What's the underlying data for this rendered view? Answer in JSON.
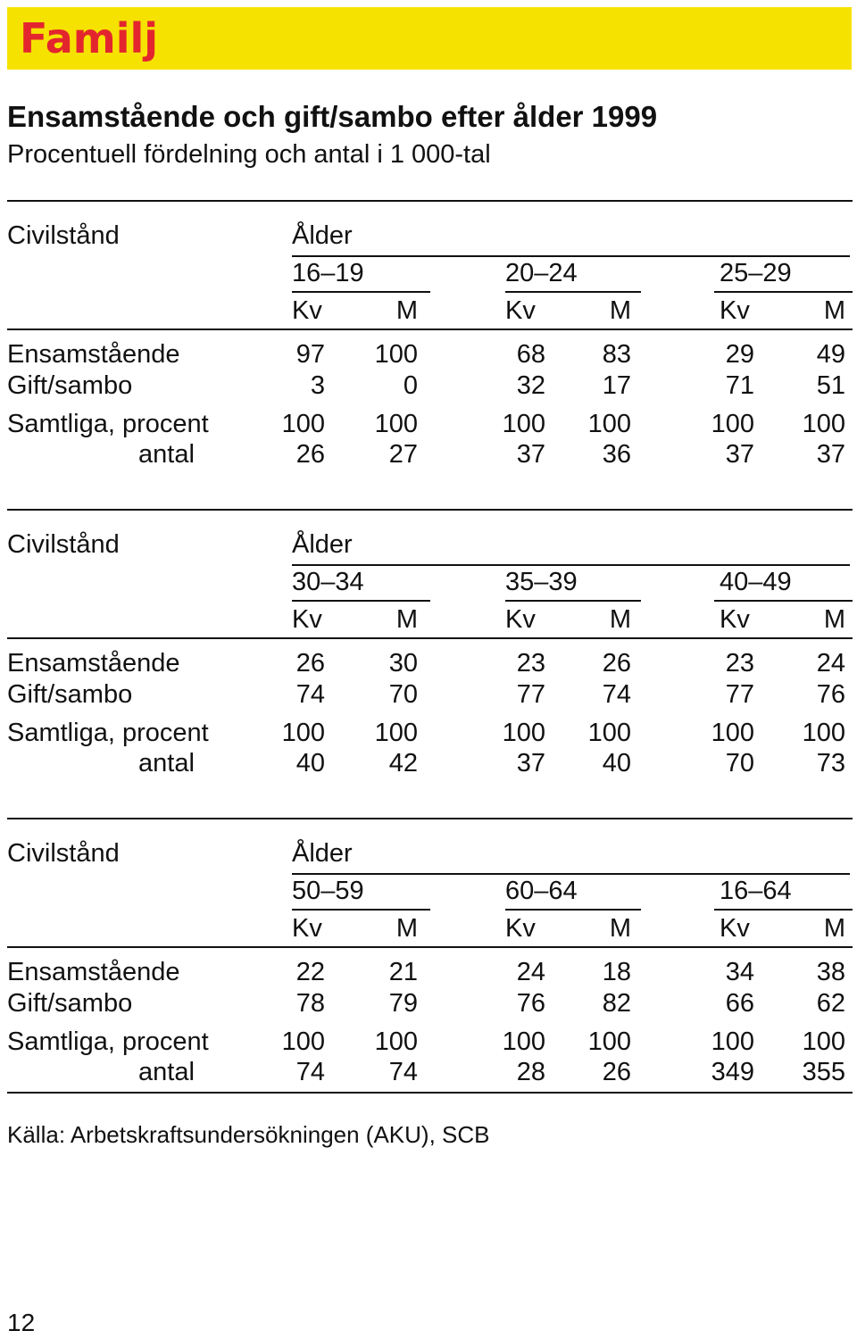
{
  "banner": {
    "title": "Familj",
    "background": "#f6e200",
    "title_color": "#e3262e"
  },
  "title": "Ensamstående och gift/sambo efter ålder 1999",
  "subtitle": "Procentuell fördelning och antal i 1 000-tal",
  "headers": {
    "row_header": "Civilstånd",
    "age": "Ålder",
    "female": "Kv",
    "male": "M"
  },
  "sections": [
    {
      "groups": [
        "16–19",
        "20–24",
        "25–29"
      ],
      "rows": [
        {
          "label": "Ensamstående",
          "values": [
            "97",
            "100",
            "68",
            "83",
            "29",
            "49"
          ]
        },
        {
          "label": "Gift/sambo",
          "values": [
            "3",
            "0",
            "32",
            "17",
            "71",
            "51"
          ]
        },
        {
          "label": "Samtliga, procent",
          "values": [
            "100",
            "100",
            "100",
            "100",
            "100",
            "100"
          ]
        },
        {
          "label": "antal",
          "values": [
            "26",
            "27",
            "37",
            "36",
            "37",
            "37"
          ]
        }
      ]
    },
    {
      "groups": [
        "30–34",
        "35–39",
        "40–49"
      ],
      "rows": [
        {
          "label": "Ensamstående",
          "values": [
            "26",
            "30",
            "23",
            "26",
            "23",
            "24"
          ]
        },
        {
          "label": "Gift/sambo",
          "values": [
            "74",
            "70",
            "77",
            "74",
            "77",
            "76"
          ]
        },
        {
          "label": "Samtliga, procent",
          "values": [
            "100",
            "100",
            "100",
            "100",
            "100",
            "100"
          ]
        },
        {
          "label": "antal",
          "values": [
            "40",
            "42",
            "37",
            "40",
            "70",
            "73"
          ]
        }
      ]
    },
    {
      "groups": [
        "50–59",
        "60–64",
        "16–64"
      ],
      "rows": [
        {
          "label": "Ensamstående",
          "values": [
            "22",
            "21",
            "24",
            "18",
            "34",
            "38"
          ]
        },
        {
          "label": "Gift/sambo",
          "values": [
            "78",
            "79",
            "76",
            "82",
            "66",
            "62"
          ]
        },
        {
          "label": "Samtliga, procent",
          "values": [
            "100",
            "100",
            "100",
            "100",
            "100",
            "100"
          ]
        },
        {
          "label": "antal",
          "values": [
            "74",
            "74",
            "28",
            "26",
            "349",
            "355"
          ]
        }
      ]
    }
  ],
  "source": "Källa: Arbetskraftsundersökningen (AKU), SCB",
  "page_number": "12"
}
